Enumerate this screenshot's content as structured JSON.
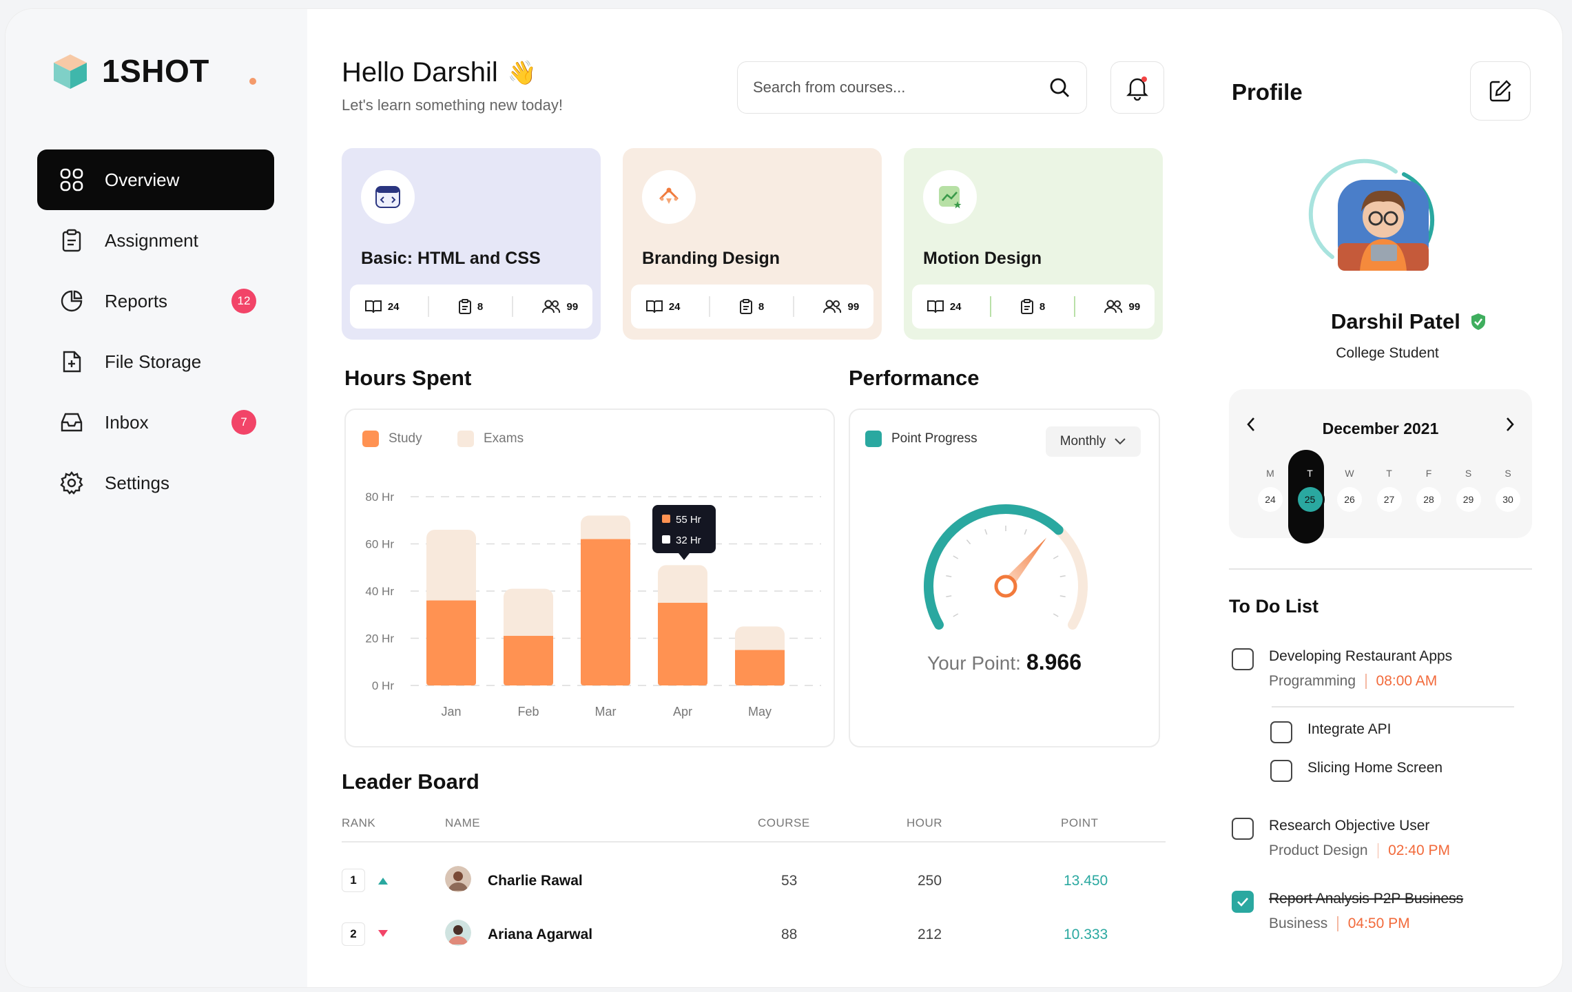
{
  "brand": {
    "name": "1SHOT"
  },
  "nav": [
    {
      "label": "Overview",
      "icon": "grid-icon",
      "active": true
    },
    {
      "label": "Assignment",
      "icon": "clipboard-icon",
      "badge": ""
    },
    {
      "label": "Reports",
      "icon": "pie-chart-icon",
      "badge": "12"
    },
    {
      "label": "File Storage",
      "icon": "file-plus-icon",
      "badge": ""
    },
    {
      "label": "Inbox",
      "icon": "inbox-icon",
      "badge": "7"
    },
    {
      "label": "Settings",
      "icon": "gear-icon",
      "badge": ""
    }
  ],
  "header": {
    "greeting": "Hello Darshil",
    "emoji": "👋",
    "subtitle": "Let's learn something new today!",
    "search_placeholder": "Search from courses..."
  },
  "courses": [
    {
      "title": "Basic: HTML and CSS",
      "lessons": "24",
      "assignments": "8",
      "students": "99",
      "bg": "#e6e7f7",
      "icon": "code-icon"
    },
    {
      "title": "Branding Design",
      "lessons": "24",
      "assignments": "8",
      "students": "99",
      "bg": "#f8ece2",
      "icon": "pen-tool-icon"
    },
    {
      "title": "Motion Design",
      "lessons": "24",
      "assignments": "8",
      "students": "99",
      "bg": "#ebf5e4",
      "icon": "chart-icon"
    }
  ],
  "hours": {
    "title": "Hours Spent",
    "legend": [
      "Study",
      "Exams"
    ],
    "tooltip": {
      "study": "55 Hr",
      "exams": "32 Hr"
    }
  },
  "chart_data": {
    "type": "bar",
    "stacked": true,
    "categories": [
      "Jan",
      "Feb",
      "Mar",
      "Apr",
      "May"
    ],
    "series": [
      {
        "name": "Study",
        "values": [
          36,
          21,
          62,
          35,
          15
        ],
        "color": "#ff9252"
      },
      {
        "name": "Exams",
        "values": [
          30,
          20,
          10,
          16,
          10
        ],
        "color": "#f8e9dc"
      }
    ],
    "y_ticks": [
      "80 Hr",
      "60 Hr",
      "40 Hr",
      "20 Hr",
      "0 Hr"
    ],
    "ylim": [
      0,
      80
    ],
    "grid": true,
    "legend_position": "top-left"
  },
  "performance": {
    "title": "Performance",
    "legend": "Point Progress",
    "period": "Monthly",
    "point_label": "Your Point:",
    "point_value": "8.966",
    "progress_fraction": 0.68,
    "color": "#2aa8a0"
  },
  "leaderboard": {
    "title": "Leader Board",
    "columns": [
      "RANK",
      "NAME",
      "COURSE",
      "HOUR",
      "POINT"
    ],
    "rows": [
      {
        "rank": "1",
        "trend": "up",
        "name": "Charlie Rawal",
        "course": "53",
        "hour": "250",
        "point": "13.450"
      },
      {
        "rank": "2",
        "trend": "down",
        "name": "Ariana Agarwal",
        "course": "88",
        "hour": "212",
        "point": "10.333"
      }
    ]
  },
  "profile": {
    "title": "Profile",
    "name": "Darshil Patel",
    "role": "College Student"
  },
  "calendar": {
    "month": "December 2021",
    "days": [
      "M",
      "T",
      "W",
      "T",
      "F",
      "S",
      "S"
    ],
    "dates": [
      "24",
      "25",
      "26",
      "27",
      "28",
      "29",
      "30"
    ],
    "selected_index": 1
  },
  "todo": {
    "title": "To Do List",
    "items": [
      {
        "name": "Developing Restaurant Apps",
        "category": "Programming",
        "time": "08:00 AM",
        "done": false
      },
      {
        "name": "Integrate API",
        "done": false
      },
      {
        "name": "Slicing Home Screen",
        "done": false
      },
      {
        "name": "Research Objective User",
        "category": "Product Design",
        "time": "02:40 PM",
        "done": false
      },
      {
        "name": "Report Analysis P2P Business",
        "category": "Business",
        "time": "04:50 PM",
        "done": true
      }
    ]
  }
}
